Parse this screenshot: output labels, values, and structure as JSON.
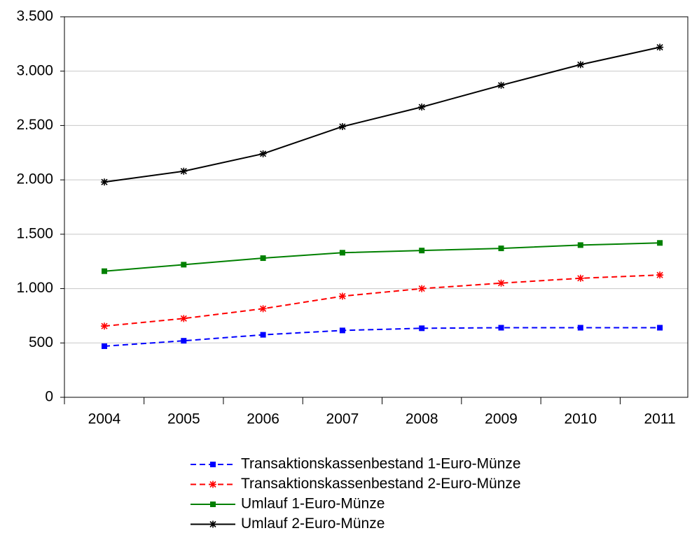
{
  "chart_data": {
    "type": "line",
    "categories": [
      "2004",
      "2005",
      "2006",
      "2007",
      "2008",
      "2009",
      "2010",
      "2011"
    ],
    "series": [
      {
        "name": "Transaktionskassenbestand 1-Euro-Münze",
        "color": "#0000ff",
        "dashed": true,
        "marker": "square",
        "values": [
          470,
          520,
          575,
          615,
          635,
          640,
          640,
          640
        ]
      },
      {
        "name": "Transaktionskassenbestand 2-Euro-Münze",
        "color": "#ff0000",
        "dashed": true,
        "marker": "asterisk",
        "values": [
          655,
          725,
          815,
          930,
          1000,
          1050,
          1095,
          1125
        ]
      },
      {
        "name": "Umlauf 1-Euro-Münze",
        "color": "#008000",
        "dashed": false,
        "marker": "square",
        "values": [
          1160,
          1220,
          1280,
          1330,
          1350,
          1370,
          1400,
          1420
        ]
      },
      {
        "name": "Umlauf 2-Euro-Münze",
        "color": "#000000",
        "dashed": false,
        "marker": "asterisk",
        "values": [
          1980,
          2080,
          2240,
          2490,
          2670,
          2870,
          3060,
          3220
        ]
      }
    ],
    "ylim": [
      0,
      3500
    ],
    "yticks": [
      0,
      500,
      {
        "value": 1000,
        "label": "1.000"
      },
      {
        "value": 1500,
        "label": "1.500"
      },
      {
        "value": 2000,
        "label": "2.000"
      },
      {
        "value": 2500,
        "label": "2.500"
      },
      {
        "value": 3000,
        "label": "3.000"
      },
      {
        "value": 3500,
        "label": "3.500"
      }
    ],
    "grid": true
  }
}
